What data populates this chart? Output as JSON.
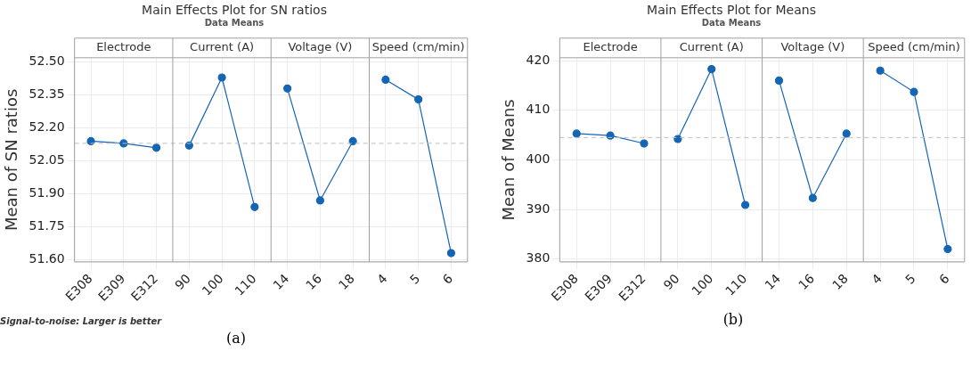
{
  "chart_data": [
    {
      "type": "line",
      "title": "Main Effects Plot for SN ratios",
      "subtitle": "Data Means",
      "ylabel": "Mean of SN ratios",
      "categories": [
        "E308",
        "E309",
        "E312",
        "90",
        "100",
        "110",
        "14",
        "16",
        "18",
        "4",
        "5",
        "6"
      ],
      "series": [
        {
          "color": "#1565b5",
          "values": [
            52.14,
            52.13,
            52.11,
            null,
            null,
            null,
            null,
            null,
            null,
            null,
            null,
            null
          ]
        },
        {
          "color": "#1565b5",
          "values": [
            null,
            null,
            null,
            52.12,
            52.43,
            51.84,
            null,
            null,
            null,
            null,
            null,
            null
          ]
        },
        {
          "color": "#1565b5",
          "values": [
            null,
            null,
            null,
            null,
            null,
            null,
            52.38,
            51.87,
            52.14,
            null,
            null,
            null
          ]
        },
        {
          "color": "#1565b5",
          "values": [
            null,
            null,
            null,
            null,
            null,
            null,
            null,
            null,
            null,
            52.42,
            52.33,
            51.63
          ]
        }
      ],
      "ylim": [
        51.59,
        52.52
      ],
      "yticks": [
        {
          "value": 51.6,
          "label": "51.60"
        },
        {
          "value": 51.75,
          "label": "51.75"
        },
        {
          "value": 51.9,
          "label": "51.90"
        },
        {
          "value": 52.05,
          "label": "52.05"
        },
        {
          "value": 52.2,
          "label": "52.20"
        },
        {
          "value": 52.35,
          "label": "52.35"
        },
        {
          "value": 52.5,
          "label": "52.50"
        }
      ],
      "ref_lines": [
        {
          "axis": "y",
          "value": 52.13,
          "color": "#bdbdbd",
          "line_style": "dashed"
        }
      ],
      "grid": true,
      "marker": "circle",
      "line_style": "solid",
      "legend": false,
      "annotations": [
        "Electrode",
        "Current (A)",
        "Voltage (V)",
        "Speed (cm/min)",
        "Signal-to-noise: Larger is better",
        "(a)"
      ]
    },
    {
      "type": "line",
      "title": "Main Effects Plot for Means",
      "subtitle": "Data Means",
      "ylabel": "Mean of Means",
      "categories": [
        "E308",
        "E309",
        "E312",
        "90",
        "100",
        "110",
        "14",
        "16",
        "18",
        "4",
        "5",
        "6"
      ],
      "series": [
        {
          "color": "#1565b5",
          "values": [
            405.3,
            404.9,
            403.3,
            null,
            null,
            null,
            null,
            null,
            null,
            null,
            null,
            null
          ]
        },
        {
          "color": "#1565b5",
          "values": [
            null,
            null,
            null,
            404.2,
            418.3,
            390.9,
            null,
            null,
            null,
            null,
            null,
            null
          ]
        },
        {
          "color": "#1565b5",
          "values": [
            null,
            null,
            null,
            null,
            null,
            null,
            416.0,
            392.3,
            405.3,
            null,
            null,
            null
          ]
        },
        {
          "color": "#1565b5",
          "values": [
            null,
            null,
            null,
            null,
            null,
            null,
            null,
            null,
            null,
            418.0,
            413.7,
            382.0
          ]
        }
      ],
      "ylim": [
        379.4,
        420.6
      ],
      "yticks": [
        380,
        390,
        400,
        410,
        420
      ],
      "ref_lines": [
        {
          "axis": "y",
          "value": 404.5,
          "color": "#bdbdbd",
          "line_style": "dashed"
        }
      ],
      "grid": true,
      "marker": "circle",
      "line_style": "solid",
      "legend": false,
      "annotations": [
        "Electrode",
        "Current (A)",
        "Voltage (V)",
        "Speed (cm/min)",
        "(b)"
      ]
    }
  ]
}
